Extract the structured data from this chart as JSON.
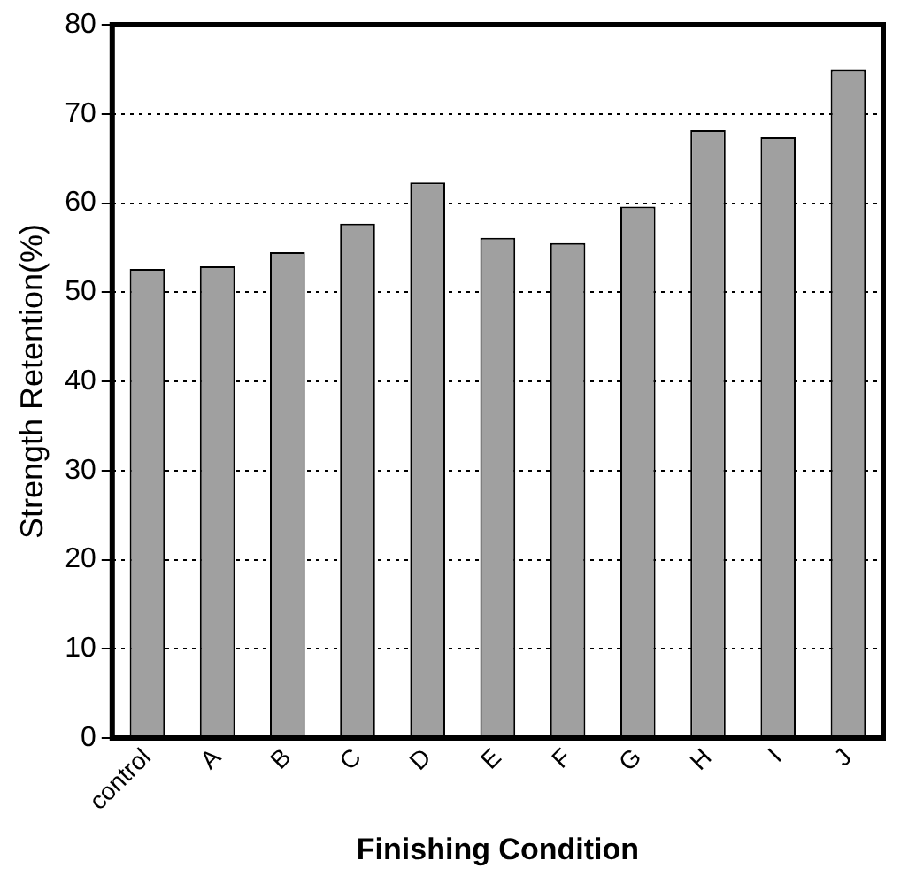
{
  "chart_data": {
    "type": "bar",
    "xlabel": "Finishing Condition",
    "ylabel": "Strength Retention(%)",
    "categories": [
      "control",
      "A",
      "B",
      "C",
      "D",
      "E",
      "F",
      "G",
      "H",
      "I",
      "J"
    ],
    "values": [
      52.6,
      52.9,
      54.5,
      57.7,
      62.3,
      56.1,
      55.5,
      59.6,
      68.2,
      67.4,
      75.0
    ],
    "color": "#a0a0a0",
    "ylim": [
      0,
      80
    ],
    "yticks": [
      0,
      10,
      20,
      30,
      40,
      50,
      60,
      70,
      80
    ],
    "grid": "y",
    "legend": false
  }
}
